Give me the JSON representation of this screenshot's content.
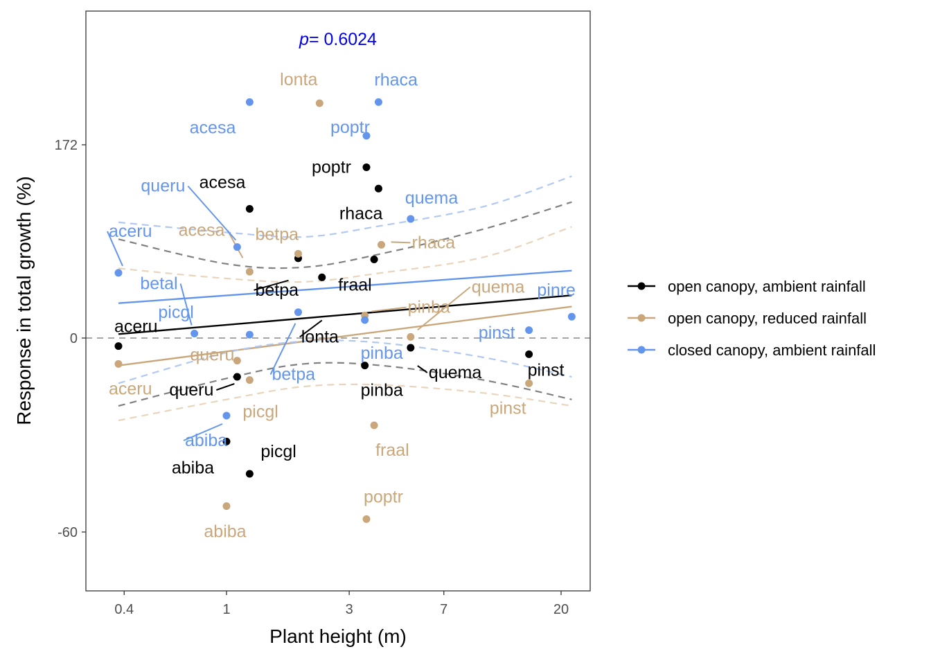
{
  "chart_data": {
    "type": "scatter",
    "xlabel": "Plant height (m)",
    "ylabel": "Response in total growth (%)",
    "x_scale": "log",
    "x_ticks": [
      0.4,
      1,
      3,
      7,
      20
    ],
    "x_tick_labels": [
      "0.4",
      "1",
      "3",
      "7",
      "20"
    ],
    "y_scale": "custom",
    "y_ticks": [
      -60,
      0,
      172
    ],
    "y_tick_labels": [
      "-60",
      "0",
      "172"
    ],
    "annotation": {
      "p_label": "p",
      "p_value": "= 0.6024",
      "color": "#0000ee"
    },
    "reference_line": {
      "y": 0,
      "style": "dashed",
      "color": "#a6a6a6"
    },
    "legend": {
      "position": "right"
    },
    "series": [
      {
        "name": "open canopy, ambient rainfall",
        "color": "#000000",
        "band_color": "#808080",
        "points": [
          {
            "label": "aceru",
            "x": 0.38,
            "y": -2.5
          },
          {
            "label": "abiba",
            "x": 1.0,
            "y": -32
          },
          {
            "label": "picgl",
            "x": 1.23,
            "y": -42
          },
          {
            "label": "queru",
            "x": 1.1,
            "y": -12
          },
          {
            "label": "acesa",
            "x": 1.23,
            "y": 115
          },
          {
            "label": "betpa",
            "x": 1.9,
            "y": 71
          },
          {
            "label": "lonta",
            "x": 2.35,
            "y": 54
          },
          {
            "label": "poptr",
            "x": 3.5,
            "y": 152
          },
          {
            "label": "rhaca",
            "x": 3.9,
            "y": 133
          },
          {
            "label": "fraal",
            "x": 3.75,
            "y": 70
          },
          {
            "label": "pinba",
            "x": 3.45,
            "y": -8.5
          },
          {
            "label": "quema",
            "x": 5.2,
            "y": -3
          },
          {
            "label": "pinst",
            "x": 15,
            "y": -5
          }
        ],
        "fit": {
          "x0": 0.38,
          "y0": 3.5,
          "x1": 22,
          "y1": 38
        },
        "ci_upper": [
          [
            0.38,
            88
          ],
          [
            1,
            66
          ],
          [
            2,
            63
          ],
          [
            4,
            75
          ],
          [
            10,
            97
          ],
          [
            22,
            121
          ]
        ],
        "ci_lower": [
          [
            0.38,
            -21
          ],
          [
            1,
            -12.5
          ],
          [
            2,
            -8
          ],
          [
            4,
            -8.5
          ],
          [
            10,
            -13
          ],
          [
            22,
            -19
          ]
        ]
      },
      {
        "name": "open canopy, reduced rainfall",
        "color": "#c9a77b",
        "band_color": "#e8d5bb",
        "points": [
          {
            "label": "aceru",
            "x": 0.38,
            "y": -8
          },
          {
            "label": "abiba",
            "x": 1.0,
            "y": -52
          },
          {
            "label": "picgl",
            "x": 1.23,
            "y": -13
          },
          {
            "label": "queru",
            "x": 1.1,
            "y": -7
          },
          {
            "label": "acesa",
            "x": 1.23,
            "y": 59
          },
          {
            "label": "betpa",
            "x": 1.9,
            "y": 75
          },
          {
            "label": "lonta",
            "x": 2.3,
            "y": 209
          },
          {
            "label": "rhaca",
            "x": 4.0,
            "y": 83
          },
          {
            "label": "pinba",
            "x": 3.45,
            "y": 20
          },
          {
            "label": "quema",
            "x": 5.2,
            "y": 1
          },
          {
            "label": "fraal",
            "x": 3.75,
            "y": -27
          },
          {
            "label": "poptr",
            "x": 3.5,
            "y": -56
          },
          {
            "label": "pinst",
            "x": 15,
            "y": -14
          }
        ],
        "fit": {
          "x0": 0.38,
          "y0": -8.5,
          "x1": 22,
          "y1": 28
        },
        "ci_upper": [
          [
            0.38,
            62
          ],
          [
            1,
            53
          ],
          [
            2,
            50
          ],
          [
            4,
            58
          ],
          [
            10,
            72
          ],
          [
            22,
            99
          ]
        ],
        "ci_lower": [
          [
            0.38,
            -25.5
          ],
          [
            1,
            -19
          ],
          [
            2,
            -15
          ],
          [
            4,
            -14.5
          ],
          [
            10,
            -17
          ],
          [
            22,
            -21
          ]
        ]
      },
      {
        "name": "closed canopy, ambient rainfall",
        "color": "#6495ed",
        "band_color": "#b0c8f2",
        "points": [
          {
            "label": "acesa",
            "x": 1.23,
            "y": 210
          },
          {
            "label": "rhaca",
            "x": 3.9,
            "y": 210
          },
          {
            "label": "poptr",
            "x": 3.5,
            "y": 180
          },
          {
            "label": "quema",
            "x": 5.2,
            "y": 106
          },
          {
            "label": "queru",
            "x": 1.1,
            "y": 81
          },
          {
            "label": "aceru",
            "x": 0.38,
            "y": 58
          },
          {
            "label": "betpa",
            "x": 1.9,
            "y": 23
          },
          {
            "label": "picgl",
            "x": 1.23,
            "y": 3
          },
          {
            "label": "betal",
            "x": 0.75,
            "y": 4
          },
          {
            "label": "pinba",
            "x": 3.45,
            "y": 16
          },
          {
            "label": "pinre",
            "x": 22,
            "y": 19
          },
          {
            "label": "pinst",
            "x": 15,
            "y": 7
          },
          {
            "label": "abiba",
            "x": 1.0,
            "y": -24
          }
        ],
        "fit": {
          "x0": 0.38,
          "y0": 31,
          "x1": 22,
          "y1": 60
        },
        "ci_upper": [
          [
            0.38,
            103
          ],
          [
            1,
            94
          ],
          [
            2,
            90
          ],
          [
            4,
            100
          ],
          [
            10,
            117
          ],
          [
            22,
            144
          ]
        ],
        "ci_lower": [
          [
            0.38,
            -14
          ],
          [
            1,
            -4.5
          ],
          [
            2,
            -1
          ],
          [
            4,
            -1.5
          ],
          [
            10,
            -6
          ],
          [
            22,
            -12
          ]
        ]
      }
    ]
  }
}
